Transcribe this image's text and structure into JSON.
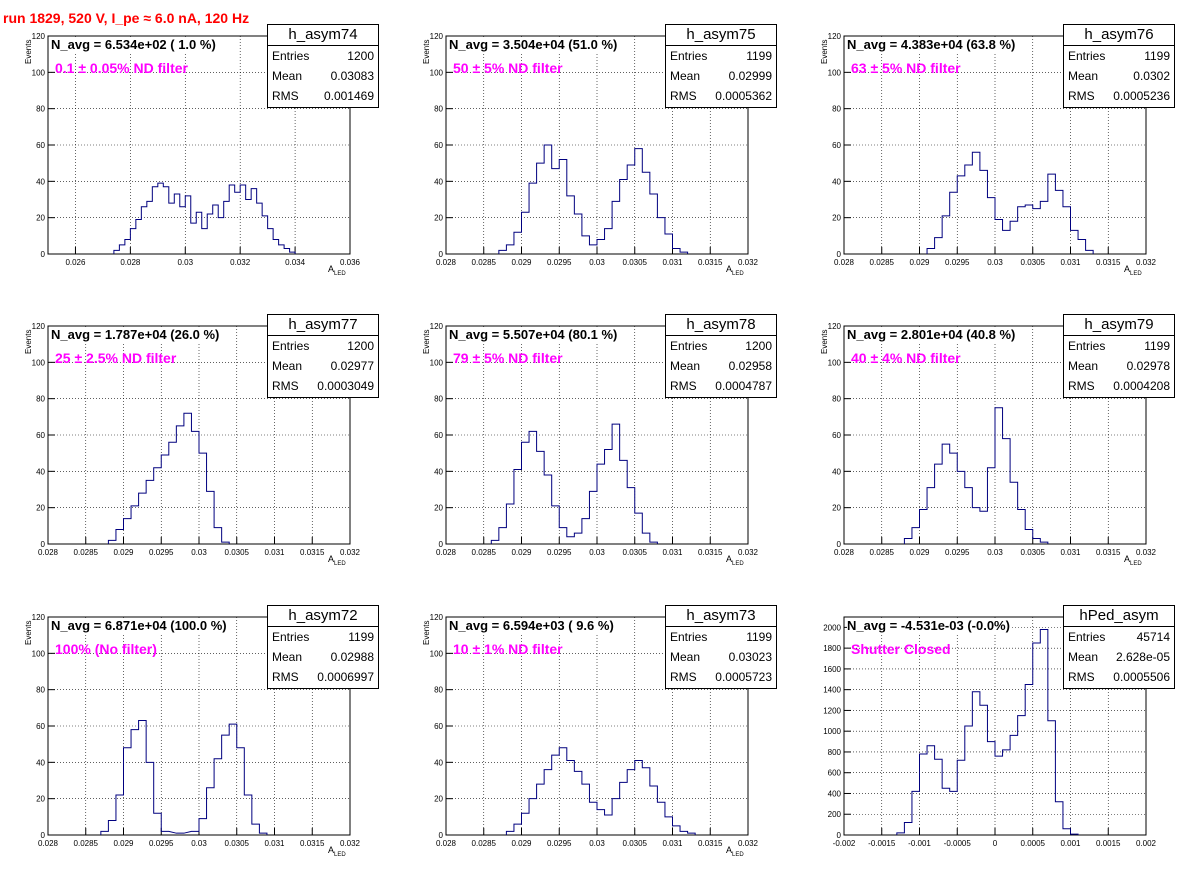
{
  "run_title": "run 1829,   520 V, I_pe ≈ 6.0 nA, 120 Hz",
  "colors": {
    "histogram_line": "#00007f",
    "filter_text": "#ff00ff",
    "title_text": "#ff0000",
    "grid": "#000000"
  },
  "chart_data": [
    {
      "type": "histogram",
      "name": "h_asym74",
      "stats": {
        "entries": "1200",
        "mean": "0.03083",
        "rms": "0.001469"
      },
      "n_avg_label": "N_avg = 6.534e+02 ( 1.0 %)",
      "filter_label": "0.1 ± 0.05% ND filter",
      "xlabel": "A_LED",
      "ylabel": "Events",
      "xlim": [
        0.025,
        0.036
      ],
      "ylim": [
        0,
        120
      ],
      "xticks": [
        "0.026",
        "0.028",
        "0.03",
        "0.032",
        "0.034",
        "0.036"
      ],
      "xtick_values": [
        0.026,
        0.028,
        0.03,
        0.032,
        0.034,
        0.036
      ],
      "yticks": [
        "0",
        "20",
        "40",
        "60",
        "80",
        "100",
        "120"
      ],
      "bins": [
        [
          0.0275,
          2
        ],
        [
          0.0277,
          5
        ],
        [
          0.0279,
          8
        ],
        [
          0.0281,
          14
        ],
        [
          0.0283,
          19
        ],
        [
          0.0285,
          26
        ],
        [
          0.0287,
          29
        ],
        [
          0.0289,
          37
        ],
        [
          0.0291,
          39
        ],
        [
          0.0293,
          37
        ],
        [
          0.0295,
          28
        ],
        [
          0.0297,
          33
        ],
        [
          0.0299,
          26
        ],
        [
          0.0301,
          32
        ],
        [
          0.0303,
          17
        ],
        [
          0.0305,
          23
        ],
        [
          0.0307,
          14
        ],
        [
          0.0309,
          22
        ],
        [
          0.0311,
          27
        ],
        [
          0.0313,
          20
        ],
        [
          0.0315,
          29
        ],
        [
          0.0317,
          38
        ],
        [
          0.0319,
          34
        ],
        [
          0.0321,
          38
        ],
        [
          0.0323,
          30
        ],
        [
          0.0325,
          36
        ],
        [
          0.0327,
          28
        ],
        [
          0.0329,
          21
        ],
        [
          0.0331,
          14
        ],
        [
          0.0333,
          8
        ],
        [
          0.0335,
          5
        ],
        [
          0.0337,
          3
        ],
        [
          0.0339,
          1
        ]
      ]
    },
    {
      "type": "histogram",
      "name": "h_asym75",
      "stats": {
        "entries": "1199",
        "mean": "0.02999",
        "rms": "0.0005362"
      },
      "n_avg_label": "N_avg = 3.504e+04 (51.0 %)",
      "filter_label": "50 ± 5% ND filter",
      "xlabel": "A_LED",
      "ylabel": "Events",
      "xlim": [
        0.028,
        0.032
      ],
      "ylim": [
        0,
        120
      ],
      "xticks": [
        "0.028",
        "0.0285",
        "0.029",
        "0.0295",
        "0.03",
        "0.0305",
        "0.031",
        "0.0315",
        "0.032"
      ],
      "xtick_values": [
        0.028,
        0.0285,
        0.029,
        0.0295,
        0.03,
        0.0305,
        0.031,
        0.0315,
        0.032
      ],
      "yticks": [
        "0",
        "20",
        "40",
        "60",
        "80",
        "100",
        "120"
      ],
      "bins": [
        [
          0.02875,
          2
        ],
        [
          0.02885,
          5
        ],
        [
          0.02895,
          12
        ],
        [
          0.02905,
          23
        ],
        [
          0.02915,
          39
        ],
        [
          0.02925,
          50
        ],
        [
          0.02935,
          60
        ],
        [
          0.02945,
          47
        ],
        [
          0.02955,
          52
        ],
        [
          0.02965,
          32
        ],
        [
          0.02975,
          22
        ],
        [
          0.02985,
          10
        ],
        [
          0.02995,
          5
        ],
        [
          0.03005,
          8
        ],
        [
          0.03015,
          14
        ],
        [
          0.03025,
          29
        ],
        [
          0.03035,
          41
        ],
        [
          0.03045,
          49
        ],
        [
          0.03055,
          58
        ],
        [
          0.03065,
          45
        ],
        [
          0.03075,
          33
        ],
        [
          0.03085,
          20
        ],
        [
          0.03095,
          11
        ],
        [
          0.03105,
          3
        ],
        [
          0.03115,
          1
        ]
      ]
    },
    {
      "type": "histogram",
      "name": "h_asym76",
      "stats": {
        "entries": "1199",
        "mean": "0.0302",
        "rms": "0.0005236"
      },
      "n_avg_label": "N_avg = 4.383e+04 (63.8 %)",
      "filter_label": "63 ± 5% ND filter",
      "xlabel": "A_LED",
      "ylabel": "Events",
      "xlim": [
        0.028,
        0.032
      ],
      "ylim": [
        0,
        120
      ],
      "xticks": [
        "0.028",
        "0.0285",
        "0.029",
        "0.0295",
        "0.03",
        "0.0305",
        "0.031",
        "0.0315",
        "0.032"
      ],
      "xtick_values": [
        0.028,
        0.0285,
        0.029,
        0.0295,
        0.03,
        0.0305,
        0.031,
        0.0315,
        0.032
      ],
      "yticks": [
        "0",
        "20",
        "40",
        "60",
        "80",
        "100",
        "120"
      ],
      "bins": [
        [
          0.02915,
          3
        ],
        [
          0.02925,
          9
        ],
        [
          0.02935,
          21
        ],
        [
          0.02945,
          34
        ],
        [
          0.02955,
          43
        ],
        [
          0.02965,
          49
        ],
        [
          0.02975,
          56
        ],
        [
          0.02985,
          46
        ],
        [
          0.02995,
          31
        ],
        [
          0.03005,
          19
        ],
        [
          0.03015,
          13
        ],
        [
          0.03025,
          18
        ],
        [
          0.03035,
          26
        ],
        [
          0.03045,
          27
        ],
        [
          0.03055,
          25
        ],
        [
          0.03065,
          29
        ],
        [
          0.03075,
          44
        ],
        [
          0.03085,
          35
        ],
        [
          0.03095,
          26
        ],
        [
          0.03105,
          13
        ],
        [
          0.03115,
          8
        ],
        [
          0.03125,
          2
        ]
      ]
    },
    {
      "type": "histogram",
      "name": "h_asym77",
      "stats": {
        "entries": "1200",
        "mean": "0.02977",
        "rms": "0.0003049"
      },
      "n_avg_label": "N_avg = 1.787e+04 (26.0 %)",
      "filter_label": "25 ± 2.5% ND filter",
      "xlabel": "A_LED",
      "ylabel": "Events",
      "xlim": [
        0.028,
        0.032
      ],
      "ylim": [
        0,
        120
      ],
      "xticks": [
        "0.028",
        "0.0285",
        "0.029",
        "0.0295",
        "0.03",
        "0.0305",
        "0.031",
        "0.0315",
        "0.032"
      ],
      "xtick_values": [
        0.028,
        0.0285,
        0.029,
        0.0295,
        0.03,
        0.0305,
        0.031,
        0.0315,
        0.032
      ],
      "yticks": [
        "0",
        "20",
        "40",
        "60",
        "80",
        "100",
        "120"
      ],
      "bins": [
        [
          0.02885,
          2
        ],
        [
          0.02895,
          8
        ],
        [
          0.02905,
          14
        ],
        [
          0.02915,
          21
        ],
        [
          0.02925,
          28
        ],
        [
          0.02935,
          35
        ],
        [
          0.02945,
          42
        ],
        [
          0.02955,
          49
        ],
        [
          0.02965,
          56
        ],
        [
          0.02975,
          65
        ],
        [
          0.02985,
          72
        ],
        [
          0.02995,
          62
        ],
        [
          0.03005,
          50
        ],
        [
          0.03015,
          29
        ],
        [
          0.03025,
          9
        ],
        [
          0.03035,
          1
        ]
      ]
    },
    {
      "type": "histogram",
      "name": "h_asym78",
      "stats": {
        "entries": "1200",
        "mean": "0.02958",
        "rms": "0.0004787"
      },
      "n_avg_label": "N_avg = 5.507e+04 (80.1 %)",
      "filter_label": "79 ± 5% ND filter",
      "xlabel": "A_LED",
      "ylabel": "Events",
      "xlim": [
        0.028,
        0.032
      ],
      "ylim": [
        0,
        120
      ],
      "xticks": [
        "0.028",
        "0.0285",
        "0.029",
        "0.0295",
        "0.03",
        "0.0305",
        "0.031",
        "0.0315",
        "0.032"
      ],
      "xtick_values": [
        0.028,
        0.0285,
        0.029,
        0.0295,
        0.03,
        0.0305,
        0.031,
        0.0315,
        0.032
      ],
      "yticks": [
        "0",
        "20",
        "40",
        "60",
        "80",
        "100",
        "120"
      ],
      "bins": [
        [
          0.02865,
          2
        ],
        [
          0.02875,
          9
        ],
        [
          0.02885,
          22
        ],
        [
          0.02895,
          41
        ],
        [
          0.02905,
          56
        ],
        [
          0.02915,
          62
        ],
        [
          0.02925,
          51
        ],
        [
          0.02935,
          38
        ],
        [
          0.02945,
          21
        ],
        [
          0.02955,
          9
        ],
        [
          0.02965,
          4
        ],
        [
          0.02975,
          6
        ],
        [
          0.02985,
          14
        ],
        [
          0.02995,
          29
        ],
        [
          0.03005,
          44
        ],
        [
          0.03015,
          52
        ],
        [
          0.03025,
          66
        ],
        [
          0.03035,
          46
        ],
        [
          0.03045,
          31
        ],
        [
          0.03055,
          17
        ],
        [
          0.03065,
          6
        ],
        [
          0.03075,
          1
        ]
      ]
    },
    {
      "type": "histogram",
      "name": "h_asym79",
      "stats": {
        "entries": "1199",
        "mean": "0.02978",
        "rms": "0.0004208"
      },
      "n_avg_label": "N_avg = 2.801e+04 (40.8 %)",
      "filter_label": "40 ± 4% ND filter",
      "xlabel": "A_LED",
      "ylabel": "Events",
      "xlim": [
        0.028,
        0.032
      ],
      "ylim": [
        0,
        120
      ],
      "xticks": [
        "0.028",
        "0.0285",
        "0.029",
        "0.0295",
        "0.03",
        "0.0305",
        "0.031",
        "0.0315",
        "0.032"
      ],
      "xtick_values": [
        0.028,
        0.0285,
        0.029,
        0.0295,
        0.03,
        0.0305,
        0.031,
        0.0315,
        0.032
      ],
      "yticks": [
        "0",
        "20",
        "40",
        "60",
        "80",
        "100",
        "120"
      ],
      "bins": [
        [
          0.02885,
          3
        ],
        [
          0.02895,
          9
        ],
        [
          0.02905,
          19
        ],
        [
          0.02915,
          31
        ],
        [
          0.02925,
          44
        ],
        [
          0.02935,
          55
        ],
        [
          0.02945,
          50
        ],
        [
          0.02955,
          40
        ],
        [
          0.02965,
          31
        ],
        [
          0.02975,
          20
        ],
        [
          0.02985,
          18
        ],
        [
          0.02995,
          42
        ],
        [
          0.03005,
          75
        ],
        [
          0.03015,
          58
        ],
        [
          0.03025,
          34
        ],
        [
          0.03035,
          19
        ],
        [
          0.03045,
          8
        ],
        [
          0.03055,
          3
        ],
        [
          0.03065,
          1
        ]
      ]
    },
    {
      "type": "histogram",
      "name": "h_asym72",
      "stats": {
        "entries": "1199",
        "mean": "0.02988",
        "rms": "0.0006997"
      },
      "n_avg_label": "N_avg = 6.871e+04 (100.0 %)",
      "filter_label": "100% (No filter)",
      "xlabel": "A_LED",
      "ylabel": "Events",
      "xlim": [
        0.028,
        0.032
      ],
      "ylim": [
        0,
        120
      ],
      "xticks": [
        "0.028",
        "0.0285",
        "0.029",
        "0.0295",
        "0.03",
        "0.0305",
        "0.031",
        "0.0315",
        "0.032"
      ],
      "xtick_values": [
        0.028,
        0.0285,
        0.029,
        0.0295,
        0.03,
        0.0305,
        0.031,
        0.0315,
        0.032
      ],
      "yticks": [
        "0",
        "20",
        "40",
        "60",
        "80",
        "100",
        "120"
      ],
      "bins": [
        [
          0.02875,
          2
        ],
        [
          0.02885,
          8
        ],
        [
          0.02895,
          22
        ],
        [
          0.02905,
          48
        ],
        [
          0.02915,
          58
        ],
        [
          0.02925,
          63
        ],
        [
          0.02935,
          40
        ],
        [
          0.02945,
          12
        ],
        [
          0.02955,
          2
        ],
        [
          0.02975,
          1
        ],
        [
          0.02995,
          2
        ],
        [
          0.03005,
          9
        ],
        [
          0.03015,
          26
        ],
        [
          0.03025,
          42
        ],
        [
          0.03035,
          55
        ],
        [
          0.03045,
          61
        ],
        [
          0.03055,
          48
        ],
        [
          0.03065,
          22
        ],
        [
          0.03075,
          6
        ],
        [
          0.03085,
          1
        ]
      ]
    },
    {
      "type": "histogram",
      "name": "h_asym73",
      "stats": {
        "entries": "1199",
        "mean": "0.03023",
        "rms": "0.0005723"
      },
      "n_avg_label": "N_avg = 6.594e+03 ( 9.6 %)",
      "filter_label": "10 ± 1% ND filter",
      "xlabel": "A_LED",
      "ylabel": "Events",
      "xlim": [
        0.028,
        0.032
      ],
      "ylim": [
        0,
        120
      ],
      "xticks": [
        "0.028",
        "0.0285",
        "0.029",
        "0.0295",
        "0.03",
        "0.0305",
        "0.031",
        "0.0315",
        "0.032"
      ],
      "xtick_values": [
        0.028,
        0.0285,
        0.029,
        0.0295,
        0.03,
        0.0305,
        0.031,
        0.0315,
        0.032
      ],
      "yticks": [
        "0",
        "20",
        "40",
        "60",
        "80",
        "100",
        "120"
      ],
      "bins": [
        [
          0.02885,
          2
        ],
        [
          0.02895,
          6
        ],
        [
          0.02905,
          12
        ],
        [
          0.02915,
          20
        ],
        [
          0.02925,
          28
        ],
        [
          0.02935,
          36
        ],
        [
          0.02945,
          44
        ],
        [
          0.02955,
          48
        ],
        [
          0.02965,
          41
        ],
        [
          0.02975,
          35
        ],
        [
          0.02985,
          28
        ],
        [
          0.02995,
          18
        ],
        [
          0.03005,
          14
        ],
        [
          0.03015,
          11
        ],
        [
          0.03025,
          20
        ],
        [
          0.03035,
          29
        ],
        [
          0.03045,
          36
        ],
        [
          0.03055,
          41
        ],
        [
          0.03065,
          37
        ],
        [
          0.03075,
          27
        ],
        [
          0.03085,
          18
        ],
        [
          0.03095,
          10
        ],
        [
          0.03105,
          5
        ],
        [
          0.03115,
          2
        ],
        [
          0.03125,
          1
        ]
      ]
    },
    {
      "type": "histogram",
      "name": "hPed_asym",
      "stats": {
        "entries": "45714",
        "mean": "2.628e-05",
        "rms": "0.0005506"
      },
      "n_avg_label": "N_avg = -4.531e-03 (-0.0%)",
      "filter_label": "Shutter Closed",
      "xlabel": "",
      "ylabel": "",
      "xlim": [
        -0.002,
        0.002
      ],
      "ylim": [
        0,
        2100
      ],
      "xticks": [
        "-0.002",
        "-0.0015",
        "-0.001",
        "-0.0005",
        "0",
        "0.0005",
        "0.001",
        "0.0015",
        "0.002"
      ],
      "xtick_values": [
        -0.002,
        -0.0015,
        -0.001,
        -0.0005,
        0,
        0.0005,
        0.001,
        0.0015,
        0.002
      ],
      "yticks": [
        "0",
        "200",
        "400",
        "600",
        "800",
        "1000",
        "1200",
        "1400",
        "1600",
        "1800",
        "2000"
      ],
      "bins": [
        [
          -0.00125,
          20
        ],
        [
          -0.00115,
          120
        ],
        [
          -0.00105,
          420
        ],
        [
          -0.00095,
          780
        ],
        [
          -0.00085,
          860
        ],
        [
          -0.00075,
          730
        ],
        [
          -0.00065,
          450
        ],
        [
          -0.00055,
          420
        ],
        [
          -0.00045,
          720
        ],
        [
          -0.00035,
          1050
        ],
        [
          -0.00025,
          1380
        ],
        [
          -0.00015,
          1250
        ],
        [
          -5e-05,
          900
        ],
        [
          5e-05,
          760
        ],
        [
          0.00015,
          820
        ],
        [
          0.00025,
          960
        ],
        [
          0.00035,
          1150
        ],
        [
          0.00045,
          1450
        ],
        [
          0.00055,
          1850
        ],
        [
          0.00065,
          1980
        ],
        [
          0.00075,
          1100
        ],
        [
          0.00085,
          320
        ],
        [
          0.00095,
          60
        ],
        [
          0.00105,
          8
        ]
      ]
    }
  ]
}
